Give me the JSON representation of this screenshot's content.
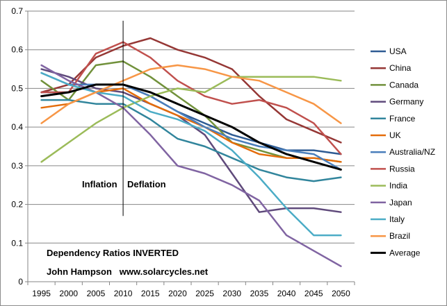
{
  "chart_data": {
    "type": "line",
    "title": "",
    "xlabel": "",
    "ylabel": "",
    "ylim": [
      0,
      0.7
    ],
    "yticks": [
      0,
      0.1,
      0.2,
      0.3,
      0.4,
      0.5,
      0.6,
      0.7
    ],
    "ytick_labels": [
      "0",
      "0.1",
      "0.2",
      "0.3",
      "0.4",
      "0.5",
      "0.6",
      "0.7"
    ],
    "categories": [
      "1995",
      "2000",
      "2005",
      "2010",
      "2015",
      "2020",
      "2025",
      "2030",
      "2035",
      "2040",
      "2045",
      "2050"
    ],
    "grid": "horizontal",
    "legend_position": "right",
    "marker_year": "2010",
    "annotations": {
      "left_label": "Inflation",
      "right_label": "Deflation",
      "note_line1": "Dependency Ratios INVERTED",
      "note_line2": "John Hampson   www.solarcycles.net"
    },
    "series": [
      {
        "name": "USA",
        "color": "#2e5b93",
        "width": 2.5,
        "values": [
          0.49,
          0.49,
          0.51,
          0.51,
          0.48,
          0.44,
          0.41,
          0.38,
          0.36,
          0.34,
          0.34,
          0.33
        ]
      },
      {
        "name": "China",
        "color": "#953735",
        "width": 2.5,
        "values": [
          0.49,
          0.51,
          0.58,
          0.61,
          0.63,
          0.6,
          0.58,
          0.55,
          0.48,
          0.42,
          0.39,
          0.36
        ]
      },
      {
        "name": "Canada",
        "color": "#71913b",
        "width": 2.5,
        "values": [
          0.52,
          0.47,
          0.56,
          0.57,
          0.53,
          0.48,
          0.43,
          0.36,
          0.34,
          0.32,
          0.32,
          0.31
        ]
      },
      {
        "name": "Germany",
        "color": "#5f4a7b",
        "width": 2.5,
        "values": [
          0.55,
          0.53,
          0.5,
          0.49,
          0.46,
          0.43,
          0.38,
          0.28,
          0.18,
          0.19,
          0.19,
          0.18
        ]
      },
      {
        "name": "France",
        "color": "#31859c",
        "width": 2.5,
        "values": [
          0.47,
          0.47,
          0.46,
          0.46,
          0.42,
          0.37,
          0.35,
          0.32,
          0.29,
          0.27,
          0.26,
          0.27
        ]
      },
      {
        "name": "UK",
        "color": "#e46c0a",
        "width": 2.5,
        "values": [
          0.45,
          0.46,
          0.49,
          0.5,
          0.46,
          0.43,
          0.4,
          0.36,
          0.33,
          0.32,
          0.32,
          0.31
        ]
      },
      {
        "name": "Australia/NZ",
        "color": "#4a7ebb",
        "width": 2.5,
        "values": [
          0.54,
          0.51,
          0.51,
          0.51,
          0.48,
          0.44,
          0.4,
          0.37,
          0.35,
          0.34,
          0.33,
          0.29
        ]
      },
      {
        "name": "Russia",
        "color": "#c0504d",
        "width": 2.5,
        "values": [
          0.49,
          0.49,
          0.59,
          0.62,
          0.58,
          0.52,
          0.48,
          0.46,
          0.47,
          0.45,
          0.41,
          0.33
        ]
      },
      {
        "name": "India",
        "color": "#9bbb59",
        "width": 2.5,
        "values": [
          0.31,
          0.36,
          0.41,
          0.45,
          0.48,
          0.5,
          0.49,
          0.53,
          0.53,
          0.53,
          0.53,
          0.52
        ]
      },
      {
        "name": "Japan",
        "color": "#8064a2",
        "width": 2.5,
        "values": [
          0.56,
          0.52,
          0.49,
          0.45,
          0.38,
          0.3,
          0.28,
          0.25,
          0.21,
          0.12,
          0.08,
          0.04
        ]
      },
      {
        "name": "Italy",
        "color": "#4bacc6",
        "width": 2.5,
        "values": [
          0.54,
          0.51,
          0.49,
          0.48,
          0.44,
          0.42,
          0.39,
          0.34,
          0.27,
          0.19,
          0.12,
          0.12
        ]
      },
      {
        "name": "Brazil",
        "color": "#f79646",
        "width": 2.5,
        "values": [
          0.41,
          0.46,
          0.49,
          0.52,
          0.55,
          0.56,
          0.55,
          0.53,
          0.52,
          0.49,
          0.46,
          0.41
        ]
      },
      {
        "name": "Average",
        "color": "#000000",
        "width": 3,
        "values": [
          0.48,
          0.49,
          0.51,
          0.51,
          0.49,
          0.46,
          0.43,
          0.4,
          0.36,
          0.33,
          0.31,
          0.29
        ]
      }
    ]
  }
}
